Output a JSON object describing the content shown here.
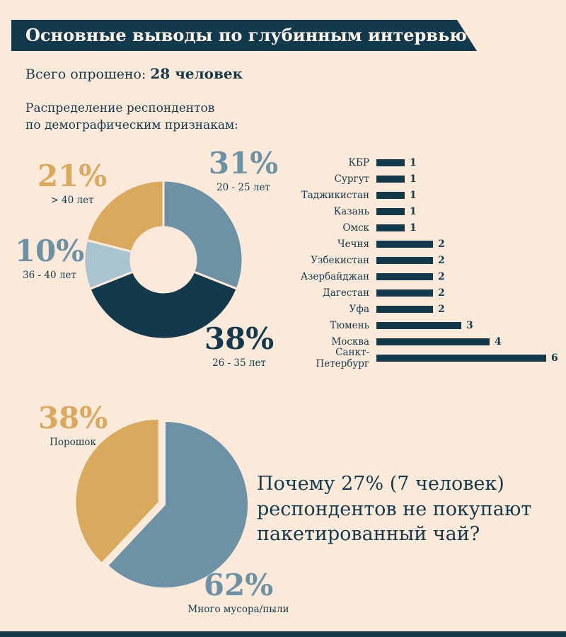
{
  "colors": {
    "background": "#fbe9da",
    "dark_teal": "#133a4c",
    "slate_blue": "#6d92a6",
    "light_blue": "#a9c3cf",
    "gold": "#d9a95e",
    "banner_text": "#fdf5ea"
  },
  "header": {
    "title": "Основные выводы по глубинным интервью"
  },
  "intro": {
    "surveyed_label": "Всего опрошено:",
    "surveyed_value": "28 человек",
    "demographics_heading": "Распределение респондентов\nпо демографическим признакам:"
  },
  "chart_data": [
    {
      "type": "pie",
      "variant": "donut",
      "name": "age-distribution",
      "categories": [
        "20 - 25 лет",
        "26 - 35 лет",
        "36 - 40 лет",
        "> 40 лет"
      ],
      "values": [
        31,
        38,
        10,
        21
      ],
      "unit": "%",
      "colors": [
        "#6d92a6",
        "#133a4c",
        "#a9c3cf",
        "#d9a95e"
      ],
      "start_angle_deg": 0,
      "direction": "clockwise",
      "labels": [
        {
          "value": "31%",
          "caption": "20 - 25 лет"
        },
        {
          "value": "38%",
          "caption": "26 - 35 лет"
        },
        {
          "value": "10%",
          "caption": "36 - 40 лет"
        },
        {
          "value": "21%",
          "caption": "> 40 лет"
        }
      ]
    },
    {
      "type": "bar",
      "orientation": "horizontal",
      "name": "city-distribution",
      "categories": [
        "КБР",
        "Сургут",
        "Таджикистан",
        "Казань",
        "Омск",
        "Чечня",
        "Узбекистан",
        "Азербайджан",
        "Дагестан",
        "Уфа",
        "Тюмень",
        "Москва",
        "Санкт-Петербург"
      ],
      "values": [
        1,
        1,
        1,
        1,
        1,
        2,
        2,
        2,
        2,
        2,
        3,
        4,
        6
      ],
      "xlim": [
        0,
        6
      ],
      "bar_color": "#133a4c",
      "value_labels": true
    },
    {
      "type": "pie",
      "name": "tea-refusal-reasons",
      "categories": [
        "Порошок",
        "Много мусора/пыли"
      ],
      "values": [
        38,
        62
      ],
      "unit": "%",
      "colors": [
        "#d9a95e",
        "#6d92a6"
      ],
      "start_angle_deg": 223.2,
      "direction": "clockwise",
      "exploded_slice": "Порошок",
      "labels": [
        {
          "value": "38%",
          "caption": "Порошок"
        },
        {
          "value": "62%",
          "caption": "Много мусора/пыли"
        }
      ]
    }
  ],
  "question": {
    "text": "Почему 27% (7 человек)\nреспондентов не покупают\nпакетированный чай?"
  }
}
